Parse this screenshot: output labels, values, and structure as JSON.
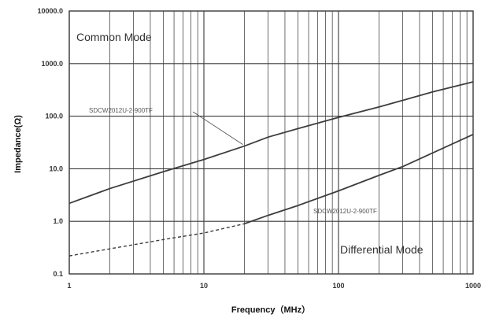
{
  "chart_data": {
    "type": "line",
    "xlabel": "Frequency（MHz）",
    "ylabel": "Impedance(Ω)",
    "x_scale": "log",
    "y_scale": "log",
    "xlim": [
      1,
      1000
    ],
    "ylim": [
      0.1,
      10000
    ],
    "x_ticks": [
      "1",
      "10",
      "100",
      "1000"
    ],
    "y_ticks": [
      "0.1",
      "1.0",
      "10.0",
      "100.0",
      "1000.0",
      "10000.0"
    ],
    "grid": true,
    "annotations": [
      "Common Mode",
      "Differential Mode"
    ],
    "series": [
      {
        "name": "SDCW2012U-2-900TF",
        "mode": "Common Mode",
        "line_style": "solid",
        "color": "#3d3d3d",
        "x": [
          1,
          2,
          5,
          10,
          20,
          30,
          50,
          100,
          200,
          300,
          500,
          1000
        ],
        "y": [
          2.2,
          4.2,
          8.8,
          15,
          27,
          40,
          58,
          95,
          150,
          200,
          290,
          450
        ]
      },
      {
        "name": "SDCW2012U-2-900TF",
        "mode": "Differential Mode",
        "line_style": "solid-dashed",
        "color": "#3d3d3d",
        "x": [
          1,
          2,
          5,
          10,
          20,
          30,
          50,
          100,
          200,
          300,
          500,
          1000
        ],
        "y": [
          0.22,
          0.3,
          0.45,
          0.6,
          0.9,
          1.3,
          2.0,
          3.8,
          7.5,
          11,
          20,
          45
        ],
        "dashed_until_x": 20
      }
    ]
  }
}
